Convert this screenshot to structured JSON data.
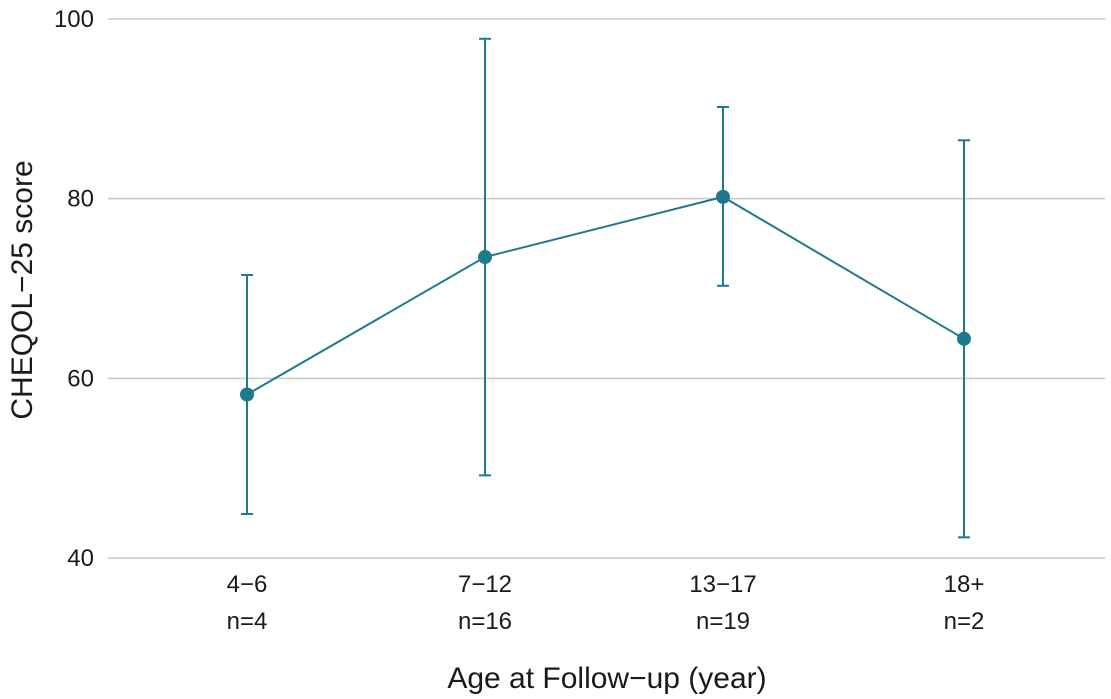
{
  "chart_data": {
    "type": "line",
    "title": "",
    "xlabel": "Age at Follow−up (year)",
    "ylabel": "CHEQOL−25 score",
    "ylim": [
      40,
      100
    ],
    "yticks": [
      "40",
      "60",
      "80",
      "100"
    ],
    "grid": "horizontal",
    "categories": [
      {
        "label": "4−6",
        "n": "n=4"
      },
      {
        "label": "7−12",
        "n": "n=16"
      },
      {
        "label": "13−17",
        "n": "n=19"
      },
      {
        "label": "18+",
        "n": "n=2"
      }
    ],
    "series": [
      {
        "name": "CHEQOL-25 score",
        "values": [
          58.2,
          73.5,
          80.2,
          64.4
        ],
        "error_low": [
          44.9,
          49.2,
          70.3,
          42.3
        ],
        "error_high": [
          71.5,
          97.8,
          90.2,
          86.5
        ]
      }
    ],
    "colors": {
      "series": "#1d7a8c",
      "grid": "#c9c9c9",
      "text": "#1a1a1a"
    }
  }
}
